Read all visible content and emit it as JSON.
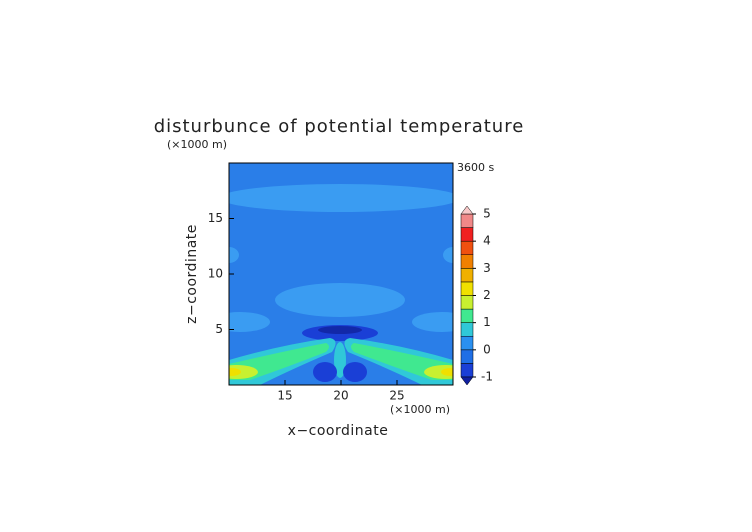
{
  "chart_data": {
    "type": "contour",
    "title": "disturbunce of potential temperature",
    "time_label": "3600 s",
    "x_label": "x−coordinate",
    "y_label": "z−coordinate",
    "x_unit": "(×1000 m)",
    "y_unit": "(×1000 m)",
    "xlim": [
      10,
      30
    ],
    "xticks": [
      15,
      20,
      25
    ],
    "ylim": [
      0,
      20
    ],
    "yticks": [
      5,
      10,
      15
    ],
    "colorbar": {
      "levels": [
        -1,
        -0.5,
        0,
        0.5,
        1,
        1.5,
        2,
        2.5,
        3,
        3.5,
        4,
        4.5,
        5
      ],
      "colors": [
        "#1a3fd6",
        "#1f6fe6",
        "#2a90f0",
        "#30c8d8",
        "#40e890",
        "#c8f030",
        "#f0e000",
        "#f0b000",
        "#f08000",
        "#f05010",
        "#f02020",
        "#f08888"
      ],
      "under_color": "#1020a0",
      "over_color": "#f8c8c8",
      "ticks": [
        -1,
        0,
        1,
        2,
        3,
        4,
        5
      ]
    }
  }
}
